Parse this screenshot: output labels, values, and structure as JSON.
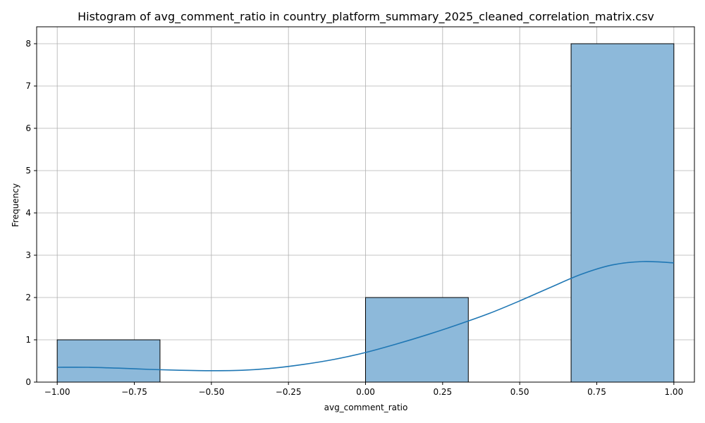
{
  "chart_data": {
    "type": "bar",
    "title": "Histogram of avg_comment_ratio in country_platform_summary_2025_cleaned_correlation_matrix.csv",
    "xlabel": "avg_comment_ratio",
    "ylabel": "Frequency",
    "xlim": [
      -1.0667,
      1.0667
    ],
    "ylim": [
      0,
      8.4
    ],
    "grid": true,
    "bar_color": "#8db9da",
    "bar_edge_color": "#000000",
    "kde_color": "#1f77b4",
    "grid_color": "#b0b0b0",
    "x_ticks": [
      -1.0,
      -0.75,
      -0.5,
      -0.25,
      0.0,
      0.25,
      0.5,
      0.75,
      1.0
    ],
    "x_tick_labels": [
      "−1.00",
      "−0.75",
      "−0.50",
      "−0.25",
      "0.00",
      "0.25",
      "0.50",
      "0.75",
      "1.00"
    ],
    "y_ticks": [
      0,
      1,
      2,
      3,
      4,
      5,
      6,
      7,
      8
    ],
    "y_tick_labels": [
      "0",
      "1",
      "2",
      "3",
      "4",
      "5",
      "6",
      "7",
      "8"
    ],
    "bins": [
      {
        "x0": -1.0,
        "x1": -0.6667,
        "count": 1
      },
      {
        "x0": -0.6667,
        "x1": -0.3333,
        "count": 0
      },
      {
        "x0": -0.3333,
        "x1": 0.0,
        "count": 0
      },
      {
        "x0": 0.0,
        "x1": 0.3333,
        "count": 2
      },
      {
        "x0": 0.3333,
        "x1": 0.6667,
        "count": 0
      },
      {
        "x0": 0.6667,
        "x1": 1.0,
        "count": 8
      }
    ],
    "kde": {
      "x": [
        -1.0,
        -0.9,
        -0.8,
        -0.7,
        -0.6,
        -0.5,
        -0.4,
        -0.3,
        -0.2,
        -0.1,
        0.0,
        0.1,
        0.2,
        0.3,
        0.4,
        0.5,
        0.6,
        0.7,
        0.8,
        0.9,
        1.0
      ],
      "y": [
        0.35,
        0.35,
        0.33,
        0.3,
        0.28,
        0.27,
        0.28,
        0.33,
        0.42,
        0.54,
        0.7,
        0.9,
        1.12,
        1.36,
        1.62,
        1.92,
        2.24,
        2.55,
        2.77,
        2.85,
        2.82
      ]
    }
  }
}
